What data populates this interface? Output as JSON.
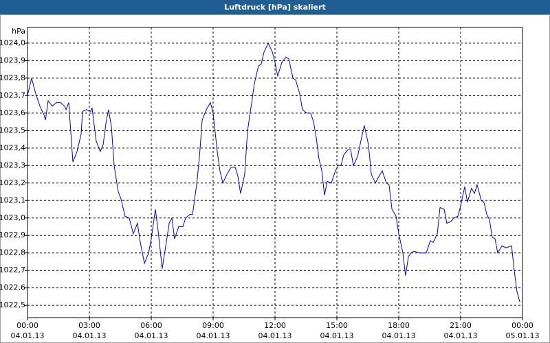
{
  "chart_data": {
    "type": "line",
    "title": "Luftdruck [hPa] skaliert",
    "y_label": "hPa",
    "xlim": [
      0,
      24
    ],
    "ylim": [
      1022.43,
      1024.09
    ],
    "grid": true,
    "xticks": [
      {
        "value": 0,
        "label": "00:00"
      },
      {
        "value": 3,
        "label": "03:00"
      },
      {
        "value": 6,
        "label": "06:00"
      },
      {
        "value": 9,
        "label": "09:00"
      },
      {
        "value": 12,
        "label": "12:00"
      },
      {
        "value": 15,
        "label": "15:00"
      },
      {
        "value": 18,
        "label": "18:00"
      },
      {
        "value": 21,
        "label": "21:00"
      },
      {
        "value": 24,
        "label": "00:00"
      }
    ],
    "xtick_dates": [
      "04.01.13",
      "04.01.13",
      "04.01.13",
      "04.01.13",
      "04.01.13",
      "04.01.13",
      "04.01.13",
      "04.01.13",
      "05.01.13"
    ],
    "yticks": [
      {
        "value": 1022.5,
        "label": "1022,5"
      },
      {
        "value": 1022.6,
        "label": "1022,6"
      },
      {
        "value": 1022.7,
        "label": "1022,7"
      },
      {
        "value": 1022.8,
        "label": "1022,8"
      },
      {
        "value": 1022.9,
        "label": "1022,9"
      },
      {
        "value": 1023.0,
        "label": "1023,0"
      },
      {
        "value": 1023.1,
        "label": "1023,1"
      },
      {
        "value": 1023.2,
        "label": "1023,2"
      },
      {
        "value": 1023.3,
        "label": "1023,3"
      },
      {
        "value": 1023.4,
        "label": "1023,4"
      },
      {
        "value": 1023.5,
        "label": "1023,5"
      },
      {
        "value": 1023.6,
        "label": "1023,6"
      },
      {
        "value": 1023.7,
        "label": "1023,7"
      },
      {
        "value": 1023.8,
        "label": "1023,8"
      },
      {
        "value": 1023.9,
        "label": "1023,9"
      },
      {
        "value": 1024.0,
        "label": "1024,0"
      }
    ],
    "x": [
      0,
      0.2,
      0.4,
      0.6,
      0.8,
      0.87,
      1.0,
      1.2,
      1.4,
      1.6,
      1.8,
      1.87,
      2.0,
      2.2,
      2.4,
      2.6,
      2.67,
      2.87,
      3.07,
      3.13,
      3.33,
      3.53,
      3.67,
      3.8,
      3.93,
      4.07,
      4.2,
      4.4,
      4.53,
      4.73,
      4.93,
      5.13,
      5.33,
      5.47,
      5.67,
      5.87,
      6.0,
      6.2,
      6.33,
      6.53,
      6.73,
      6.87,
      7.0,
      7.13,
      7.33,
      7.53,
      7.67,
      7.87,
      8.0,
      8.2,
      8.33,
      8.47,
      8.67,
      8.87,
      9.0,
      9.2,
      9.33,
      9.47,
      9.67,
      9.87,
      10.07,
      10.2,
      10.33,
      10.53,
      10.67,
      10.87,
      11.0,
      11.2,
      11.33,
      11.47,
      11.67,
      11.87,
      12.0,
      12.13,
      12.33,
      12.53,
      12.67,
      12.87,
      13.0,
      13.2,
      13.33,
      13.53,
      13.73,
      13.87,
      14.0,
      14.13,
      14.27,
      14.4,
      14.53,
      14.73,
      14.93,
      15.07,
      15.2,
      15.33,
      15.53,
      15.67,
      15.8,
      16.0,
      16.2,
      16.33,
      16.53,
      16.67,
      16.87,
      17.0,
      17.2,
      17.4,
      17.53,
      17.67,
      17.87,
      18.0,
      18.2,
      18.33,
      18.47,
      18.6,
      18.73,
      19.0,
      19.33,
      19.53,
      19.67,
      19.87,
      20.0,
      20.2,
      20.33,
      20.53,
      20.67,
      20.87,
      21.0,
      21.2,
      21.33,
      21.53,
      21.67,
      21.8,
      22.0,
      22.13,
      22.27,
      22.4,
      22.53,
      22.67,
      22.8,
      23.0,
      23.2,
      23.47,
      23.6,
      23.73,
      23.87
    ],
    "series": [
      {
        "color": "#0000c8",
        "values": [
          1023.7,
          1023.8,
          1023.71,
          1023.64,
          1023.59,
          1023.56,
          1023.67,
          1023.64,
          1023.66,
          1023.66,
          1023.64,
          1023.62,
          1023.66,
          1023.32,
          1023.38,
          1023.48,
          1023.61,
          1023.62,
          1023.61,
          1023.63,
          1023.44,
          1023.38,
          1023.42,
          1023.54,
          1023.62,
          1023.52,
          1023.3,
          1023.15,
          1023.11,
          1023.01,
          1023.0,
          1022.91,
          1022.97,
          1022.86,
          1022.74,
          1022.8,
          1022.88,
          1023.05,
          1022.93,
          1022.71,
          1022.86,
          1022.97,
          1023.0,
          1022.88,
          1022.95,
          1022.95,
          1023.0,
          1023.02,
          1023.02,
          1023.19,
          1023.34,
          1023.56,
          1023.62,
          1023.66,
          1023.6,
          1023.38,
          1023.27,
          1023.2,
          1023.25,
          1023.29,
          1023.29,
          1023.24,
          1023.14,
          1023.25,
          1023.5,
          1023.66,
          1023.77,
          1023.87,
          1023.88,
          1023.95,
          1024.0,
          1023.95,
          1023.89,
          1023.81,
          1023.89,
          1023.92,
          1023.91,
          1023.8,
          1023.79,
          1023.71,
          1023.62,
          1023.6,
          1023.6,
          1023.55,
          1023.46,
          1023.34,
          1023.27,
          1023.13,
          1023.21,
          1023.2,
          1023.27,
          1023.3,
          1023.3,
          1023.36,
          1023.39,
          1023.39,
          1023.3,
          1023.35,
          1023.46,
          1023.53,
          1023.42,
          1023.25,
          1023.2,
          1023.23,
          1023.27,
          1023.2,
          1023.19,
          1023.05,
          1023.01,
          1022.91,
          1022.8,
          1022.67,
          1022.78,
          1022.8,
          1022.81,
          1022.8,
          1022.8,
          1022.87,
          1022.86,
          1022.91,
          1023.06,
          1023.05,
          1022.97,
          1022.98,
          1023.0,
          1023.01,
          1023.07,
          1023.18,
          1023.09,
          1023.17,
          1023.14,
          1023.19,
          1023.1,
          1023.09,
          1023.02,
          1022.99,
          1022.89,
          1022.88,
          1022.8,
          1022.84,
          1022.83,
          1022.84,
          1022.7,
          1022.58,
          1022.52
        ]
      }
    ]
  }
}
